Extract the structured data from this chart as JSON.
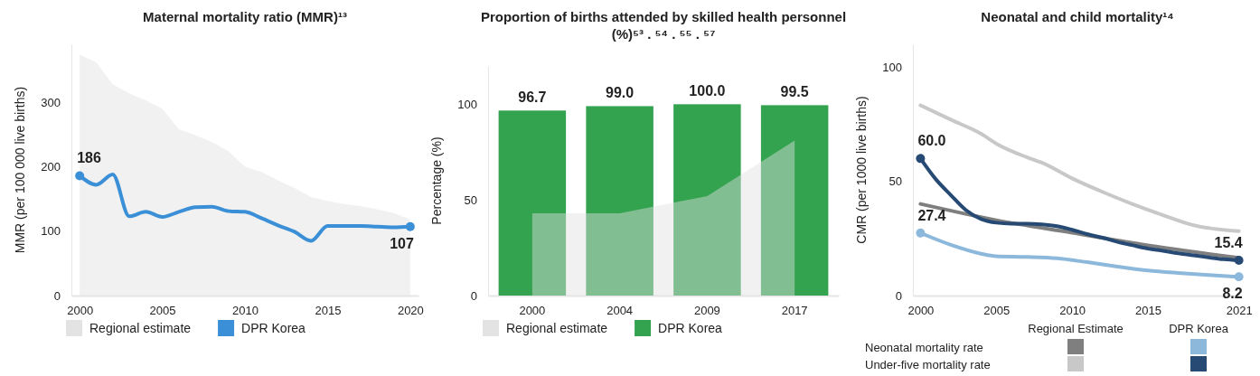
{
  "chart_data": [
    {
      "type": "line",
      "title": "Maternal mortality ratio (MMR)¹³",
      "ylabel": "MMR (per 100 000 live births)",
      "x": [
        2000,
        2001,
        2002,
        2003,
        2004,
        2005,
        2006,
        2007,
        2008,
        2009,
        2010,
        2011,
        2012,
        2013,
        2014,
        2015,
        2016,
        2017,
        2018,
        2019,
        2020
      ],
      "xlim": [
        1999.5,
        2020.5
      ],
      "xticks": [
        2000,
        2005,
        2010,
        2015,
        2020
      ],
      "ylim": [
        0,
        390
      ],
      "yticks": [
        0,
        100,
        200,
        300
      ],
      "legend": "bottom",
      "series": [
        {
          "type": "area",
          "name": "Regional estimate",
          "color": "#e0e0e0",
          "values": [
            374,
            362,
            328,
            314,
            303,
            290,
            258,
            249,
            238,
            224,
            200,
            192,
            179,
            167,
            153,
            147,
            142,
            139,
            134,
            128,
            118
          ]
        },
        {
          "name": "DPR Korea",
          "color": "#3a8fd6",
          "values": [
            186,
            172,
            188,
            123,
            130,
            122,
            130,
            137,
            138,
            131,
            130,
            120,
            109,
            99,
            85,
            108,
            108,
            108,
            107,
            106,
            107
          ],
          "value_labels": [
            "186",
            null,
            null,
            null,
            null,
            null,
            null,
            null,
            null,
            null,
            null,
            null,
            null,
            null,
            null,
            null,
            null,
            null,
            null,
            null,
            "107"
          ]
        }
      ]
    },
    {
      "type": "bar",
      "title": "Proportion of births attended by skilled health personnel (%)⁵³ . ⁵⁴ . ⁵⁵ . ⁵⁷",
      "ylabel": "Percentage (%)",
      "categories": [
        "2000",
        "2004",
        "2009",
        "2017"
      ],
      "ylim": [
        0,
        120
      ],
      "yticks": [
        0,
        50,
        100
      ],
      "legend": "bottom",
      "series": [
        {
          "name": "DPR Korea",
          "color": "#34a350",
          "values": [
            96.7,
            99.0,
            100.0,
            99.5
          ],
          "value_labels": [
            "96.7",
            "99.0",
            "100.0",
            "99.5"
          ]
        },
        {
          "type": "area",
          "name": "Regional estimate",
          "color": "#e0e0e0",
          "values": [
            43,
            43,
            52,
            81
          ]
        }
      ]
    },
    {
      "type": "line",
      "title": "Neonatal and child mortality¹⁴",
      "ylabel": "CMR (per 1000 live births)",
      "xlim": [
        1999.5,
        2021.2
      ],
      "xticks": [
        2000,
        2005,
        2010,
        2015,
        2021
      ],
      "ylim": [
        0,
        110
      ],
      "yticks": [
        0,
        50,
        100
      ],
      "annotations": [
        "Regional Estimate",
        "DPR Korea",
        "Neonatal mortality rate",
        "Under-five mortality rate"
      ],
      "series": [
        {
          "color": "#7f7f7f",
          "x": [
            2000,
            2005,
            2010,
            2015,
            2021
          ],
          "values": [
            40.1,
            33,
            27.5,
            22,
            16.5
          ]
        },
        {
          "color": "#c8c8c8",
          "x": [
            2000,
            2002,
            2004,
            2005,
            2007,
            2008,
            2010,
            2012,
            2014,
            2016,
            2018,
            2021
          ],
          "values": [
            83.3,
            77,
            70.8,
            66.5,
            60.6,
            58.2,
            51.3,
            45.4,
            40,
            35.2,
            30.8,
            28.2
          ]
        },
        {
          "color": "#8cb8dc",
          "x": [
            2000,
            2002,
            2004,
            2005,
            2007,
            2009,
            2011,
            2013,
            2015,
            2017,
            2019,
            2021
          ],
          "values": [
            27.4,
            22.2,
            18.3,
            17.2,
            16.9,
            16.3,
            14.6,
            12.7,
            11,
            9.9,
            9,
            8.2
          ],
          "value_labels": [
            "27.4",
            null,
            null,
            null,
            null,
            null,
            null,
            null,
            null,
            null,
            null,
            "8.2"
          ]
        },
        {
          "color": "#264a73",
          "x": [
            2000,
            2001,
            2002,
            2003,
            2004,
            2005,
            2006,
            2007,
            2008,
            2009,
            2010,
            2011,
            2012,
            2013,
            2014,
            2015,
            2016,
            2017,
            2018,
            2019,
            2020,
            2021
          ],
          "values": [
            60.0,
            51,
            44,
            37.4,
            33.5,
            31.9,
            31.5,
            31.5,
            31.2,
            30.4,
            28.8,
            26.9,
            25.3,
            23.5,
            22,
            20.6,
            19.6,
            18.5,
            17.6,
            16.7,
            15.9,
            15.4
          ],
          "value_labels": [
            "60.0",
            null,
            null,
            null,
            null,
            null,
            null,
            null,
            null,
            null,
            null,
            null,
            null,
            null,
            null,
            null,
            null,
            null,
            null,
            null,
            null,
            "15.4"
          ]
        }
      ]
    }
  ]
}
